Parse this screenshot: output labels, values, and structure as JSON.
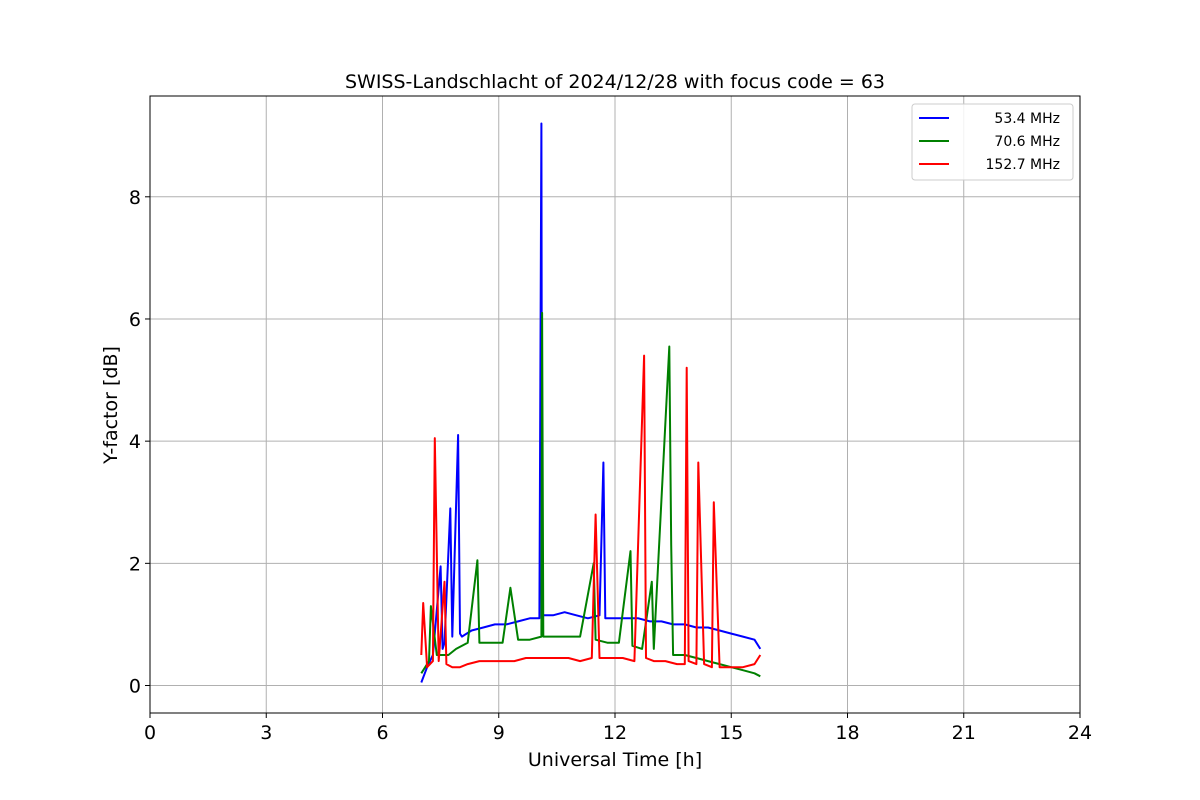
{
  "chart_data": {
    "type": "line",
    "title": "SWISS-Landschlacht of 2024/12/28 with focus code = 63",
    "xlabel": "Universal Time [h]",
    "ylabel": "Y-factor [dB]",
    "xlim": [
      0,
      24
    ],
    "ylim": [
      -0.45,
      9.65
    ],
    "xticks": [
      0,
      3,
      6,
      9,
      12,
      15,
      18,
      21,
      24
    ],
    "xtick_labels": [
      "0",
      "3",
      "6",
      "9",
      "12",
      "15",
      "18",
      "21",
      "24"
    ],
    "yticks": [
      0,
      2,
      4,
      6,
      8
    ],
    "ytick_labels": [
      "0",
      "2",
      "4",
      "6",
      "8"
    ],
    "grid": true,
    "legend_position": "top-right",
    "series": [
      {
        "name": "53.4 MHz",
        "color": "#0000ff",
        "x": [
          7.0,
          7.15,
          7.3,
          7.5,
          7.55,
          7.6,
          7.75,
          7.8,
          7.95,
          8.0,
          8.05,
          8.3,
          8.6,
          8.9,
          9.2,
          9.5,
          9.8,
          10.05,
          10.1,
          10.12,
          10.15,
          10.4,
          10.7,
          11.0,
          11.3,
          11.6,
          11.7,
          11.75,
          12.0,
          12.3,
          12.6,
          12.9,
          13.2,
          13.5,
          13.8,
          14.1,
          14.4,
          14.7,
          15.0,
          15.3,
          15.6,
          15.75
        ],
        "values": [
          0.05,
          0.3,
          0.5,
          1.95,
          0.6,
          0.7,
          2.9,
          0.8,
          4.1,
          0.85,
          0.8,
          0.9,
          0.95,
          1.0,
          1.0,
          1.05,
          1.1,
          1.1,
          9.2,
          1.2,
          1.15,
          1.15,
          1.2,
          1.15,
          1.1,
          1.15,
          3.65,
          1.1,
          1.1,
          1.1,
          1.1,
          1.05,
          1.05,
          1.0,
          1.0,
          0.95,
          0.95,
          0.9,
          0.85,
          0.8,
          0.75,
          0.6
        ]
      },
      {
        "name": "70.6 MHz",
        "color": "#008000",
        "x": [
          7.0,
          7.2,
          7.25,
          7.4,
          7.7,
          7.9,
          8.2,
          8.45,
          8.5,
          8.8,
          9.1,
          9.3,
          9.5,
          9.8,
          10.1,
          10.12,
          10.15,
          10.5,
          10.8,
          11.1,
          11.45,
          11.5,
          11.8,
          12.1,
          12.4,
          12.45,
          12.7,
          12.95,
          13.0,
          13.4,
          13.45,
          13.5,
          13.8,
          14.1,
          14.4,
          14.7,
          15.0,
          15.3,
          15.6,
          15.75
        ],
        "values": [
          0.2,
          0.4,
          1.3,
          0.5,
          0.5,
          0.6,
          0.7,
          2.05,
          0.7,
          0.7,
          0.7,
          1.6,
          0.75,
          0.75,
          0.8,
          6.1,
          0.8,
          0.8,
          0.8,
          0.8,
          2.0,
          0.75,
          0.7,
          0.7,
          2.2,
          0.65,
          0.6,
          1.7,
          0.6,
          5.55,
          2.3,
          0.5,
          0.5,
          0.45,
          0.4,
          0.35,
          0.3,
          0.25,
          0.2,
          0.15
        ]
      },
      {
        "name": "152.7 MHz",
        "color": "#ff0000",
        "x": [
          7.0,
          7.05,
          7.15,
          7.3,
          7.35,
          7.45,
          7.6,
          7.65,
          7.8,
          8.0,
          8.2,
          8.5,
          8.8,
          9.1,
          9.4,
          9.7,
          10.0,
          10.2,
          10.5,
          10.8,
          11.1,
          11.4,
          11.5,
          11.6,
          11.9,
          12.2,
          12.5,
          12.75,
          12.8,
          13.0,
          13.3,
          13.6,
          13.8,
          13.85,
          13.9,
          14.1,
          14.15,
          14.3,
          14.5,
          14.55,
          14.7,
          15.0,
          15.3,
          15.6,
          15.75
        ],
        "values": [
          0.5,
          1.35,
          0.3,
          0.4,
          4.05,
          0.4,
          1.7,
          0.35,
          0.3,
          0.3,
          0.35,
          0.4,
          0.4,
          0.4,
          0.4,
          0.45,
          0.45,
          0.45,
          0.45,
          0.45,
          0.4,
          0.45,
          2.8,
          0.45,
          0.45,
          0.45,
          0.4,
          5.4,
          0.45,
          0.4,
          0.4,
          0.35,
          0.35,
          5.2,
          0.4,
          0.35,
          3.65,
          0.35,
          0.3,
          3.0,
          0.3,
          0.3,
          0.3,
          0.35,
          0.5
        ]
      }
    ]
  }
}
